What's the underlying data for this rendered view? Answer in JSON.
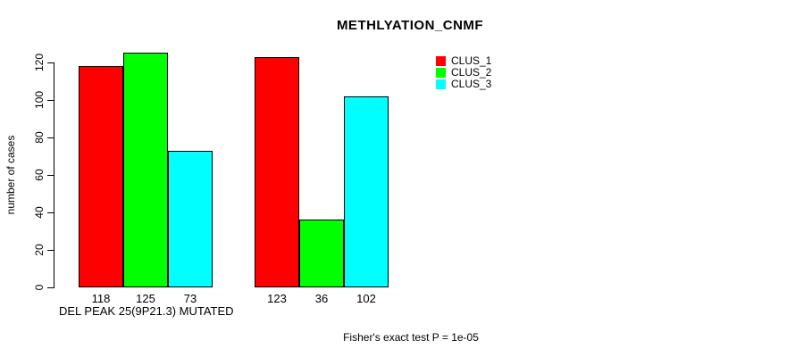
{
  "chart_data": {
    "type": "bar",
    "title": "METHLYATION_CNMF",
    "ylabel": "number of cases",
    "xlabel": "DEL PEAK 25(9P21.3) MUTATED",
    "annotation": "Fisher's exact test P = 1e-05",
    "categories": [
      "",
      ""
    ],
    "series": [
      {
        "name": "CLUS_1",
        "color": "#ff0000",
        "values": [
          118,
          123
        ]
      },
      {
        "name": "CLUS_2",
        "color": "#00ff00",
        "values": [
          125,
          36
        ]
      },
      {
        "name": "CLUS_3",
        "color": "#00ffff",
        "values": [
          73,
          102
        ]
      }
    ],
    "bar_value_labels": [
      118,
      125,
      73,
      123,
      36,
      102
    ],
    "ylim": [
      0,
      120
    ],
    "yticks": [
      0,
      20,
      40,
      60,
      80,
      100,
      120
    ],
    "legend_position": "top-right",
    "grid": false,
    "axis_color": "#000000",
    "background_color": "#ffffff"
  }
}
